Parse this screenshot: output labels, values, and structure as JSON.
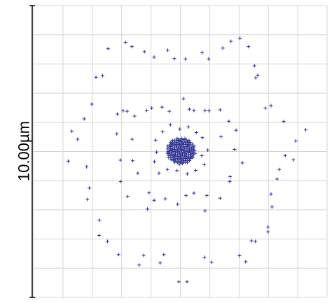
{
  "chart_data": {
    "type": "scatter",
    "marker": "plus",
    "grid": true,
    "scale_bar": {
      "label": "10.00µm",
      "length_um": 10.0
    },
    "grid_cells": {
      "columns": 10,
      "rows": 10
    },
    "colors": {
      "points": "#2b2f8f",
      "grid": "#d4d4d4",
      "frame": "#d4d4d4",
      "scale_bar": "#000000"
    },
    "xlim": [
      -4.87,
      4.87
    ],
    "ylim": [
      -4.87,
      4.87
    ],
    "units": "µm",
    "rings": [
      {
        "name": "",
        "points": [
          [
            -3.6,
            0.68
          ],
          [
            -3.41,
            0.41
          ],
          [
            -3.72,
            -0.32
          ],
          [
            -3.11,
            -0.51
          ],
          [
            -3.02,
            -1.22
          ],
          [
            -3.09,
            -1.6
          ],
          [
            -2.69,
            -2.29
          ],
          [
            -2.7,
            -2.8
          ],
          [
            -2.42,
            -3.0
          ],
          [
            -2.05,
            -3.44
          ],
          [
            -1.37,
            -3.79
          ],
          [
            -1.22,
            -3.47
          ],
          [
            -0.67,
            -3.72
          ],
          [
            -0.55,
            -3.44
          ],
          [
            -0.05,
            -4.35
          ],
          [
            0.22,
            -4.35
          ],
          [
            0.8,
            -3.53
          ],
          [
            1.04,
            -3.7
          ],
          [
            1.96,
            -3.48
          ],
          [
            2.17,
            -3.68
          ],
          [
            2.36,
            -2.98
          ],
          [
            2.49,
            -3.0
          ],
          [
            2.91,
            -2.52
          ],
          [
            2.91,
            -2.68
          ],
          [
            3.04,
            -1.85
          ],
          [
            3.01,
            -1.42
          ],
          [
            3.21,
            -0.92
          ],
          [
            3.28,
            -0.6
          ],
          [
            3.48,
            -0.14
          ],
          [
            3.75,
            -0.28
          ],
          [
            3.83,
            0.35
          ],
          [
            4.16,
            0.72
          ],
          [
            3.43,
            1.0
          ],
          [
            3.01,
            1.53
          ],
          [
            2.82,
            1.45
          ],
          [
            2.5,
            2.46
          ],
          [
            2.57,
            2.55
          ],
          [
            2.46,
            2.86
          ],
          [
            2.26,
            3.5
          ],
          [
            1.98,
            3.78
          ],
          [
            1.68,
            3.68
          ],
          [
            1.41,
            3.45
          ],
          [
            0.94,
            3.09
          ],
          [
            0.72,
            3.3
          ],
          [
            0.17,
            3.09
          ],
          [
            -0.2,
            3.1
          ],
          [
            -0.42,
            3.38
          ],
          [
            -0.87,
            3.15
          ],
          [
            -1.19,
            3.33
          ],
          [
            -1.61,
            3.5
          ],
          [
            -1.82,
            3.64
          ],
          [
            -2.4,
            3.43
          ],
          [
            -2.58,
            2.53
          ],
          [
            -2.8,
            2.48
          ],
          [
            -2.94,
            1.58
          ],
          [
            -3.19,
            1.09
          ]
        ]
      },
      {
        "name": "",
        "points": [
          [
            -2.09,
            1.25
          ],
          [
            -1.9,
            1.36
          ],
          [
            -2.11,
            0.59
          ],
          [
            -1.6,
            0.41
          ],
          [
            -1.99,
            -0.29
          ],
          [
            -1.58,
            -0.31
          ],
          [
            -1.41,
            -0.72
          ],
          [
            -1.98,
            -1.0
          ],
          [
            -1.75,
            -1.5
          ],
          [
            -1.04,
            -1.38
          ],
          [
            -1.09,
            -1.92
          ],
          [
            -0.87,
            -1.63
          ],
          [
            -0.5,
            -1.58
          ],
          [
            -0.09,
            -1.76
          ],
          [
            0.19,
            -1.47
          ],
          [
            0.45,
            -1.39
          ],
          [
            0.88,
            -1.47
          ],
          [
            0.82,
            -1.98
          ],
          [
            1.32,
            -1.56
          ],
          [
            1.64,
            -1.0
          ],
          [
            1.65,
            -0.84
          ],
          [
            2.06,
            -0.38
          ],
          [
            1.8,
            0.07
          ],
          [
            1.35,
            0.49
          ],
          [
            1.85,
            0.71
          ],
          [
            1.61,
            1.01
          ],
          [
            1.32,
            1.39
          ],
          [
            0.95,
            1.36
          ],
          [
            0.82,
            1.37
          ],
          [
            0.45,
            1.37
          ],
          [
            0.3,
            1.41
          ],
          [
            0.1,
            1.76
          ],
          [
            -0.37,
            1.34
          ],
          [
            -0.61,
            1.48
          ],
          [
            -0.95,
            1.45
          ],
          [
            -1.12,
            1.37
          ],
          [
            -1.52,
            1.18
          ],
          [
            -1.77,
            1.34
          ]
        ]
      },
      {
        "name": "",
        "points": [
          [
            -0.71,
            -0.72
          ],
          [
            -0.43,
            -0.6
          ],
          [
            -0.11,
            -0.64
          ],
          [
            0.23,
            -0.75
          ],
          [
            0.51,
            -0.63
          ],
          [
            0.79,
            -0.44
          ],
          [
            0.71,
            -0.14
          ],
          [
            0.91,
            0.05
          ],
          [
            0.73,
            0.46
          ],
          [
            0.53,
            0.63
          ],
          [
            0.27,
            0.82
          ],
          [
            -0.02,
            0.75
          ],
          [
            -0.33,
            0.89
          ],
          [
            -0.59,
            0.66
          ],
          [
            -0.82,
            0.38
          ],
          [
            -0.79,
            -0.02
          ],
          [
            -0.86,
            -0.34
          ]
        ]
      }
    ],
    "core": {
      "center": [
        0.02,
        0.02
      ],
      "radius": 0.48,
      "count": 160
    }
  }
}
